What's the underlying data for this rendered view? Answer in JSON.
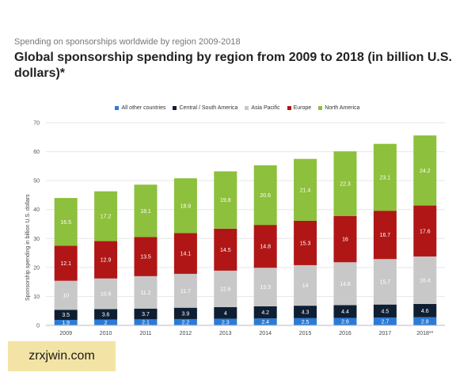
{
  "header": {
    "pre_title": "Spending on sponsorships worldwide by region 2009-2018",
    "title": "Global sponsorship spending by region from 2009 to 2018 (in billion U.S. dollars)*"
  },
  "watermark": {
    "text": "zrxjwin.com"
  },
  "chart_data": {
    "type": "bar",
    "stacked": true,
    "title": "Global sponsorship spending by region from 2009 to 2018 (in billion U.S. dollars)*",
    "xlabel": "",
    "ylabel": "Sponsorship spending in billion U.S. dollars",
    "ylim": [
      0,
      70
    ],
    "yticks": [
      0,
      10,
      20,
      30,
      40,
      50,
      60,
      70
    ],
    "grid": true,
    "legend_position": "top",
    "categories": [
      "2009",
      "2010",
      "2011",
      "2012",
      "2013",
      "2014",
      "2015",
      "2016",
      "2017",
      "2018**"
    ],
    "series": [
      {
        "name": "All other countries",
        "color": "#2b7bd6",
        "values": [
          1.9,
          2,
          2.1,
          2.2,
          2.3,
          2.4,
          2.5,
          2.6,
          2.7,
          2.8
        ]
      },
      {
        "name": "Central / South America",
        "color": "#0f1f33",
        "values": [
          3.5,
          3.6,
          3.7,
          3.9,
          4,
          4.2,
          4.3,
          4.4,
          4.5,
          4.6
        ]
      },
      {
        "name": "Asia Pacific",
        "color": "#c8c8c8",
        "values": [
          10,
          10.6,
          11.2,
          11.7,
          12.6,
          13.3,
          14,
          14.8,
          15.7,
          16.4
        ]
      },
      {
        "name": "Europe",
        "color": "#b01616",
        "values": [
          12.1,
          12.9,
          13.5,
          14.1,
          14.5,
          14.8,
          15.3,
          16,
          16.7,
          17.6
        ]
      },
      {
        "name": "North America",
        "color": "#8dc03c",
        "values": [
          16.5,
          17.2,
          18.1,
          18.9,
          19.8,
          20.6,
          21.4,
          22.3,
          23.1,
          24.2
        ]
      }
    ]
  }
}
